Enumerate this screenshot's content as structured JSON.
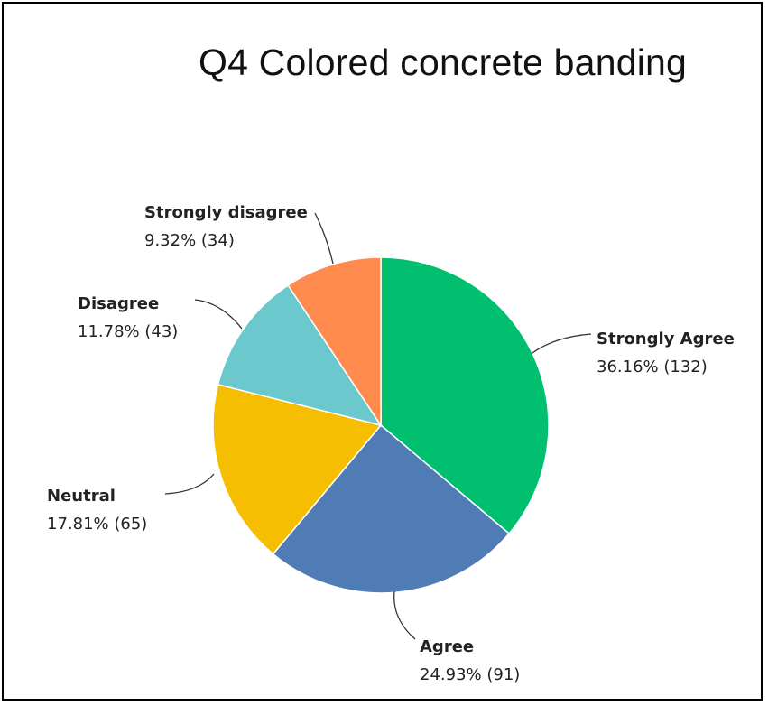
{
  "chart_data": {
    "type": "pie",
    "title": "Q4 Colored concrete banding",
    "slices": [
      {
        "label": "Strongly Agree",
        "percent": 36.16,
        "count": 132,
        "percent_text": "36.16% (132)",
        "color": "#00bf6f"
      },
      {
        "label": "Agree",
        "percent": 24.93,
        "count": 91,
        "percent_text": "24.93% (91)",
        "color": "#507cb6"
      },
      {
        "label": "Neutral",
        "percent": 17.81,
        "count": 65,
        "percent_text": "17.81% (65)",
        "color": "#f6be00"
      },
      {
        "label": "Disagree",
        "percent": 11.78,
        "count": 43,
        "percent_text": "11.78% (43)",
        "color": "#6bc8cd"
      },
      {
        "label": "Strongly disagree",
        "percent": 9.32,
        "count": 34,
        "percent_text": "9.32% (34)",
        "color": "#ff8b4f"
      }
    ],
    "start_angle": "12 o'clock",
    "direction": "clockwise",
    "legend": "none"
  }
}
